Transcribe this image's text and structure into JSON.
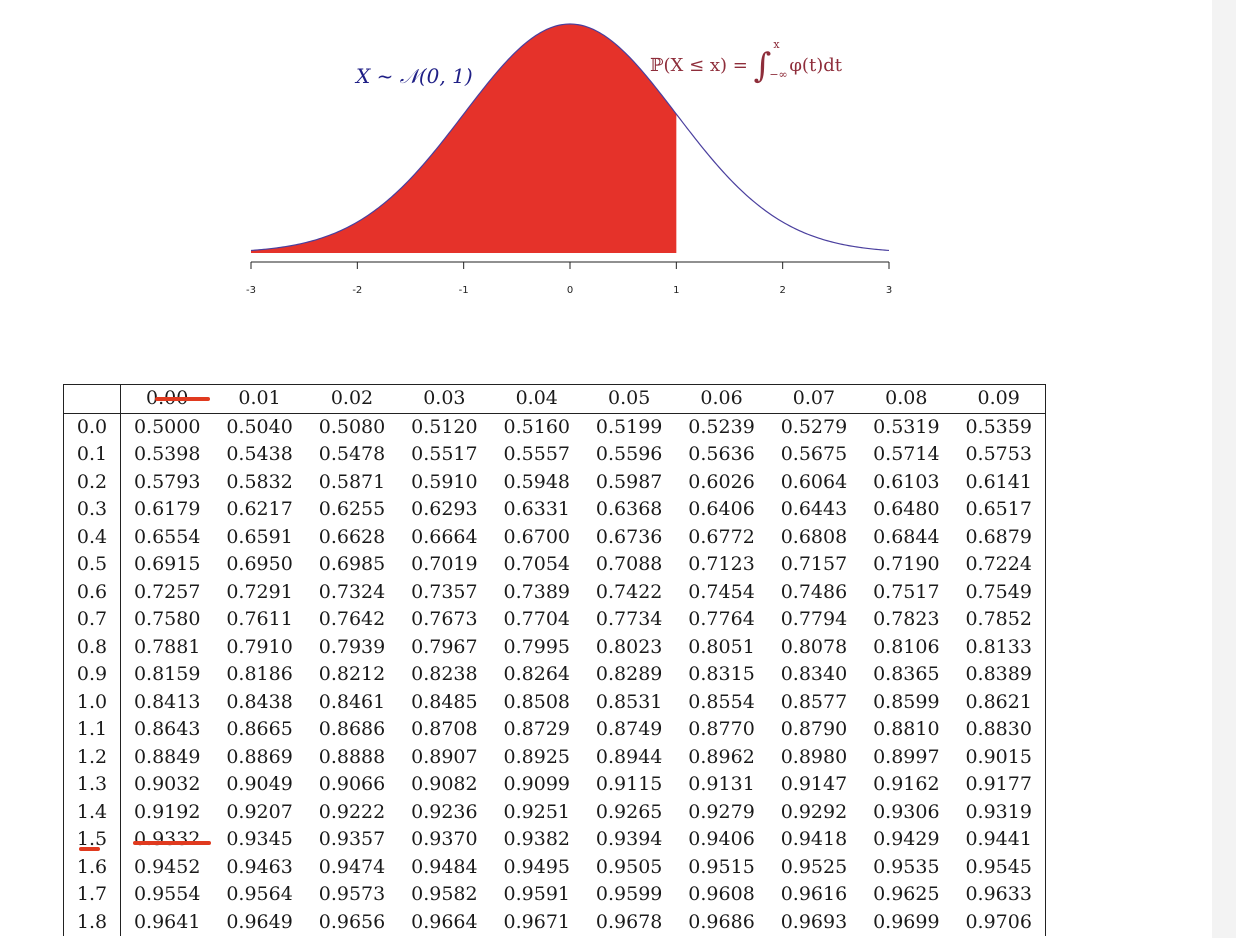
{
  "formula_left": "X ~ 𝒩(0, 1)",
  "formula_right": {
    "lhs": "ℙ(X ≤ x) = ",
    "integral": "∫",
    "upper": "x",
    "lower": "−∞",
    "integrand": "φ(t)dt"
  },
  "colors": {
    "shaded": "#e5322a",
    "curve": "#4a3f9e",
    "formula_left": "#1f1f86",
    "formula_right": "#8e2d3a",
    "marks": "#e03a1f"
  },
  "chart_data": [
    {
      "type": "area",
      "x_range": [
        -3,
        3
      ],
      "shaded_up_to": 1,
      "xticks": [
        "-3",
        "-2",
        "-1",
        "0",
        "1",
        "2",
        "3"
      ]
    },
    {
      "type": "table",
      "columns": [
        "0.00",
        "0.01",
        "0.02",
        "0.03",
        "0.04",
        "0.05",
        "0.06",
        "0.07",
        "0.08",
        "0.09"
      ],
      "rows": [
        {
          "z": "0.0",
          "values": [
            "0.5000",
            "0.5040",
            "0.5080",
            "0.5120",
            "0.5160",
            "0.5199",
            "0.5239",
            "0.5279",
            "0.5319",
            "0.5359"
          ]
        },
        {
          "z": "0.1",
          "values": [
            "0.5398",
            "0.5438",
            "0.5478",
            "0.5517",
            "0.5557",
            "0.5596",
            "0.5636",
            "0.5675",
            "0.5714",
            "0.5753"
          ]
        },
        {
          "z": "0.2",
          "values": [
            "0.5793",
            "0.5832",
            "0.5871",
            "0.5910",
            "0.5948",
            "0.5987",
            "0.6026",
            "0.6064",
            "0.6103",
            "0.6141"
          ]
        },
        {
          "z": "0.3",
          "values": [
            "0.6179",
            "0.6217",
            "0.6255",
            "0.6293",
            "0.6331",
            "0.6368",
            "0.6406",
            "0.6443",
            "0.6480",
            "0.6517"
          ]
        },
        {
          "z": "0.4",
          "values": [
            "0.6554",
            "0.6591",
            "0.6628",
            "0.6664",
            "0.6700",
            "0.6736",
            "0.6772",
            "0.6808",
            "0.6844",
            "0.6879"
          ]
        },
        {
          "z": "0.5",
          "values": [
            "0.6915",
            "0.6950",
            "0.6985",
            "0.7019",
            "0.7054",
            "0.7088",
            "0.7123",
            "0.7157",
            "0.7190",
            "0.7224"
          ]
        },
        {
          "z": "0.6",
          "values": [
            "0.7257",
            "0.7291",
            "0.7324",
            "0.7357",
            "0.7389",
            "0.7422",
            "0.7454",
            "0.7486",
            "0.7517",
            "0.7549"
          ]
        },
        {
          "z": "0.7",
          "values": [
            "0.7580",
            "0.7611",
            "0.7642",
            "0.7673",
            "0.7704",
            "0.7734",
            "0.7764",
            "0.7794",
            "0.7823",
            "0.7852"
          ]
        },
        {
          "z": "0.8",
          "values": [
            "0.7881",
            "0.7910",
            "0.7939",
            "0.7967",
            "0.7995",
            "0.8023",
            "0.8051",
            "0.8078",
            "0.8106",
            "0.8133"
          ]
        },
        {
          "z": "0.9",
          "values": [
            "0.8159",
            "0.8186",
            "0.8212",
            "0.8238",
            "0.8264",
            "0.8289",
            "0.8315",
            "0.8340",
            "0.8365",
            "0.8389"
          ]
        },
        {
          "z": "1.0",
          "values": [
            "0.8413",
            "0.8438",
            "0.8461",
            "0.8485",
            "0.8508",
            "0.8531",
            "0.8554",
            "0.8577",
            "0.8599",
            "0.8621"
          ]
        },
        {
          "z": "1.1",
          "values": [
            "0.8643",
            "0.8665",
            "0.8686",
            "0.8708",
            "0.8729",
            "0.8749",
            "0.8770",
            "0.8790",
            "0.8810",
            "0.8830"
          ]
        },
        {
          "z": "1.2",
          "values": [
            "0.8849",
            "0.8869",
            "0.8888",
            "0.8907",
            "0.8925",
            "0.8944",
            "0.8962",
            "0.8980",
            "0.8997",
            "0.9015"
          ]
        },
        {
          "z": "1.3",
          "values": [
            "0.9032",
            "0.9049",
            "0.9066",
            "0.9082",
            "0.9099",
            "0.9115",
            "0.9131",
            "0.9147",
            "0.9162",
            "0.9177"
          ]
        },
        {
          "z": "1.4",
          "values": [
            "0.9192",
            "0.9207",
            "0.9222",
            "0.9236",
            "0.9251",
            "0.9265",
            "0.9279",
            "0.9292",
            "0.9306",
            "0.9319"
          ]
        },
        {
          "z": "1.5",
          "values": [
            "0.9332",
            "0.9345",
            "0.9357",
            "0.9370",
            "0.9382",
            "0.9394",
            "0.9406",
            "0.9418",
            "0.9429",
            "0.9441"
          ]
        },
        {
          "z": "1.6",
          "values": [
            "0.9452",
            "0.9463",
            "0.9474",
            "0.9484",
            "0.9495",
            "0.9505",
            "0.9515",
            "0.9525",
            "0.9535",
            "0.9545"
          ]
        },
        {
          "z": "1.7",
          "values": [
            "0.9554",
            "0.9564",
            "0.9573",
            "0.9582",
            "0.9591",
            "0.9599",
            "0.9608",
            "0.9616",
            "0.9625",
            "0.9633"
          ]
        },
        {
          "z": "1.8",
          "values": [
            "0.9641",
            "0.9649",
            "0.9656",
            "0.9664",
            "0.9671",
            "0.9678",
            "0.9686",
            "0.9693",
            "0.9699",
            "0.9706"
          ]
        }
      ]
    }
  ],
  "annotations": {
    "highlight_column": "0.00",
    "highlight_row": "1.5",
    "highlight_value": "0.9332"
  }
}
